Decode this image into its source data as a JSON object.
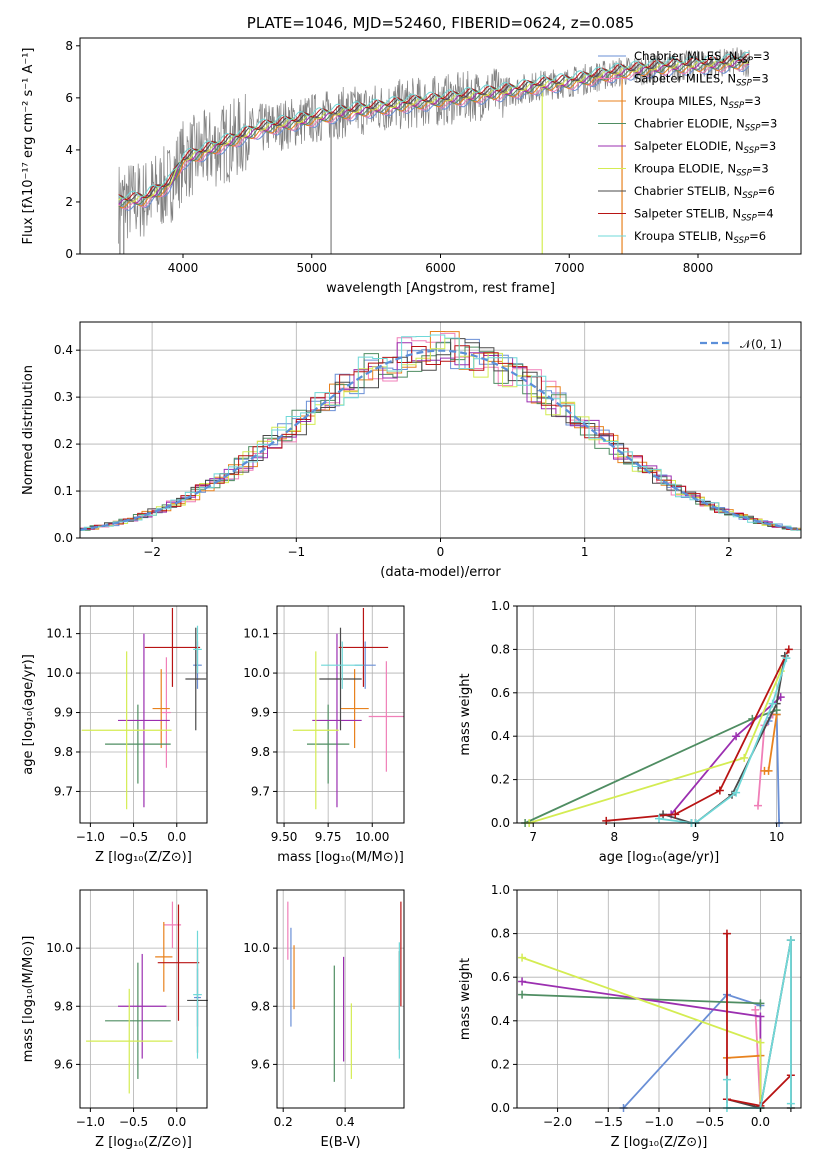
{
  "colors": {
    "Chabrier MILES": "#6a8fd6",
    "Salpeter MILES": "#f07fb8",
    "Kroupa MILES": "#e8821e",
    "Chabrier ELODIE": "#4f8d62",
    "Salpeter ELODIE": "#9b2fb0",
    "Kroupa ELODIE": "#d4ec52",
    "Chabrier STELIB": "#4a4a4a",
    "Salpeter STELIB": "#b81414",
    "Kroupa STELIB": "#6fd8d8",
    "observed": "#808080",
    "normal": "#5b8fd9"
  },
  "chart_data": [
    {
      "id": "spectrum",
      "type": "line",
      "title": "PLATE=1046, MJD=52460, FIBERID=0624, z=0.085",
      "xlabel": "wavelength [Angstrom, rest frame]",
      "ylabel": "Flux [fλ10⁻¹⁷ erg cm⁻² s⁻¹ A⁻¹]",
      "xlim": [
        3200,
        8800
      ],
      "ylim": [
        0,
        8.3
      ],
      "xticks": [
        "4000",
        "5000",
        "6000",
        "7000",
        "8000"
      ],
      "yticks": [
        "0",
        "2",
        "4",
        "6",
        "8"
      ],
      "grid": false,
      "legend_placement": "right",
      "legend": [
        {
          "label": "Chabrier MILES, N",
          "sub": "SSP",
          "val": "=3"
        },
        {
          "label": "Salpeter MILES, N",
          "sub": "SSP",
          "val": "=3"
        },
        {
          "label": "Kroupa MILES, N",
          "sub": "SSP",
          "val": "=3"
        },
        {
          "label": "Chabrier ELODIE, N",
          "sub": "SSP",
          "val": "=3"
        },
        {
          "label": "Salpeter ELODIE, N",
          "sub": "SSP",
          "val": "=3"
        },
        {
          "label": "Kroupa ELODIE, N",
          "sub": "SSP",
          "val": "=3"
        },
        {
          "label": "Chabrier STELIB, N",
          "sub": "SSP",
          "val": "=6"
        },
        {
          "label": "Salpeter STELIB, N",
          "sub": "SSP",
          "val": "=4"
        },
        {
          "label": "Kroupa STELIB, N",
          "sub": "SSP",
          "val": "=6"
        }
      ],
      "model_continuum": {
        "x": [
          3500,
          3700,
          3900,
          4000,
          4200,
          4400,
          4600,
          4800,
          5000,
          5200,
          5500,
          5800,
          6000,
          6300,
          6600,
          6800,
          7000,
          7200,
          7400,
          7800,
          8200,
          8400
        ],
        "y": [
          2.0,
          2.1,
          2.7,
          3.6,
          4.0,
          4.4,
          4.8,
          5.0,
          5.2,
          5.4,
          5.6,
          5.8,
          5.9,
          6.1,
          6.3,
          6.5,
          6.6,
          6.8,
          7.0,
          7.2,
          7.3,
          7.4
        ]
      },
      "observed_range": [
        3500,
        8400
      ]
    },
    {
      "id": "residuals",
      "type": "line",
      "xlabel": "(data-model)/error",
      "ylabel": "Normed distribution",
      "xlim": [
        -2.5,
        2.5
      ],
      "ylim": [
        0,
        0.46
      ],
      "xticks": [
        "−2",
        "−1",
        "0",
        "1",
        "2"
      ],
      "yticks": [
        "0.0",
        "0.1",
        "0.2",
        "0.3",
        "0.4"
      ],
      "grid": true,
      "legend_placement": "top-right",
      "legend": [
        {
          "label": "𝒩(0, 1)"
        }
      ],
      "series_reference": {
        "name": "𝒩(0, 1)",
        "mean": 0,
        "sigma": 1
      }
    },
    {
      "id": "age-Z",
      "type": "scatter",
      "xlabel": "Z [log₁₀(Z/Z⊙)]",
      "ylabel": "age  [log₁₀(age/yr)]",
      "xlim": [
        -1.12,
        0.35
      ],
      "ylim": [
        9.62,
        10.17
      ],
      "xticks": [
        "−1.0",
        "−0.5",
        "0.0"
      ],
      "xtickvals": [
        -1.0,
        -0.5,
        0.0
      ],
      "yticks": [
        "9.7",
        "9.8",
        "9.9",
        "10.0",
        "10.1"
      ],
      "ytickvals": [
        9.7,
        9.8,
        9.9,
        10.0,
        10.1
      ],
      "grid": true,
      "points": [
        {
          "s": "Chabrier MILES",
          "x": 0.24,
          "y": 10.02,
          "xe": 0.05,
          "ye": 0.06
        },
        {
          "s": "Salpeter MILES",
          "x": -0.12,
          "y": 9.9,
          "xe": 0.05,
          "ye": 0.14
        },
        {
          "s": "Kroupa MILES",
          "x": -0.18,
          "y": 9.91,
          "xe": 0.1,
          "ye": 0.1
        },
        {
          "s": "Chabrier ELODIE",
          "x": -0.45,
          "y": 9.82,
          "xe": 0.38,
          "ye": 0.1
        },
        {
          "s": "Salpeter ELODIE",
          "x": -0.38,
          "y": 9.88,
          "xe": 0.3,
          "ye": 0.22
        },
        {
          "s": "Kroupa ELODIE",
          "x": -0.58,
          "y": 9.855,
          "xe": 0.52,
          "ye": 0.2
        },
        {
          "s": "Chabrier STELIB",
          "x": 0.22,
          "y": 9.985,
          "xe": 0.12,
          "ye": 0.13
        },
        {
          "s": "Salpeter STELIB",
          "x": -0.05,
          "y": 10.065,
          "xe": 0.32,
          "ye": 0.1
        },
        {
          "s": "Kroupa STELIB",
          "x": 0.24,
          "y": 10.06,
          "xe": 0.05,
          "ye": 0.06
        }
      ]
    },
    {
      "id": "age-mass",
      "type": "scatter",
      "xlabel": "mass [log₁₀(M/M⊙)]",
      "ylabel": "",
      "xlim": [
        9.46,
        10.18
      ],
      "ylim": [
        9.62,
        10.17
      ],
      "xticks": [
        "9.50",
        "9.75",
        "10.00"
      ],
      "xtickvals": [
        9.5,
        9.75,
        10.0
      ],
      "yticks": [
        "9.7",
        "9.8",
        "9.9",
        "10.0",
        "10.1"
      ],
      "ytickvals": [
        9.7,
        9.8,
        9.9,
        10.0,
        10.1
      ],
      "grid": true,
      "points": [
        {
          "s": "Chabrier MILES",
          "x": 9.96,
          "y": 10.02,
          "xe": 0.06,
          "ye": 0.06
        },
        {
          "s": "Salpeter MILES",
          "x": 10.08,
          "y": 9.89,
          "xe": 0.1,
          "ye": 0.14
        },
        {
          "s": "Kroupa MILES",
          "x": 9.9,
          "y": 9.91,
          "xe": 0.08,
          "ye": 0.1
        },
        {
          "s": "Chabrier ELODIE",
          "x": 9.75,
          "y": 9.82,
          "xe": 0.12,
          "ye": 0.1
        },
        {
          "s": "Salpeter ELODIE",
          "x": 9.8,
          "y": 9.88,
          "xe": 0.14,
          "ye": 0.22
        },
        {
          "s": "Kroupa ELODIE",
          "x": 9.68,
          "y": 9.855,
          "xe": 0.13,
          "ye": 0.2
        },
        {
          "s": "Chabrier STELIB",
          "x": 9.82,
          "y": 9.985,
          "xe": 0.12,
          "ye": 0.13
        },
        {
          "s": "Salpeter STELIB",
          "x": 9.95,
          "y": 10.065,
          "xe": 0.14,
          "ye": 0.1
        },
        {
          "s": "Kroupa STELIB",
          "x": 9.83,
          "y": 10.02,
          "xe": 0.12,
          "ye": 0.06
        }
      ]
    },
    {
      "id": "mw-age",
      "type": "line",
      "xlabel": "age  [log₁₀(age/yr)]",
      "ylabel": "mass weight",
      "xlim": [
        6.8,
        10.3
      ],
      "ylim": [
        0,
        1.0
      ],
      "xticks": [
        "7",
        "8",
        "9",
        "10"
      ],
      "xtickvals": [
        7,
        8,
        9,
        10
      ],
      "yticks": [
        "0.0",
        "0.2",
        "0.4",
        "0.6",
        "0.8",
        "1.0"
      ],
      "ytickvals": [
        0,
        0.2,
        0.4,
        0.6,
        0.8,
        1.0
      ],
      "grid": true,
      "series": [
        {
          "name": "Chabrier MILES",
          "x": [
            9.9,
            9.95,
            10.0,
            10.03
          ],
          "y": [
            0.47,
            0.5,
            0.5,
            0.0
          ]
        },
        {
          "name": "Salpeter MILES",
          "x": [
            9.77,
            9.85,
            9.95
          ],
          "y": [
            0.08,
            0.45,
            0.5
          ]
        },
        {
          "name": "Kroupa MILES",
          "x": [
            9.85,
            9.9,
            10.0
          ],
          "y": [
            0.24,
            0.24,
            0.5
          ]
        },
        {
          "name": "Chabrier ELODIE",
          "x": [
            6.9,
            9.7,
            10.0
          ],
          "y": [
            0.0,
            0.48,
            0.52
          ]
        },
        {
          "name": "Salpeter ELODIE",
          "x": [
            8.7,
            9.5,
            10.05
          ],
          "y": [
            0.04,
            0.4,
            0.58
          ]
        },
        {
          "name": "Kroupa ELODIE",
          "x": [
            6.95,
            9.6,
            10.05
          ],
          "y": [
            0.0,
            0.3,
            0.7
          ]
        },
        {
          "name": "Chabrier STELIB",
          "x": [
            8.6,
            8.95,
            9.0,
            9.45,
            10.0,
            10.1
          ],
          "y": [
            0.04,
            0.0,
            0.0,
            0.13,
            0.55,
            0.77
          ]
        },
        {
          "name": "Salpeter STELIB",
          "x": [
            7.9,
            8.75,
            9.3,
            10.15
          ],
          "y": [
            0.01,
            0.04,
            0.15,
            0.8
          ]
        },
        {
          "name": "Kroupa STELIB",
          "x": [
            8.55,
            8.95,
            9.0,
            9.5,
            9.95,
            10.12
          ],
          "y": [
            0.02,
            0.0,
            0.0,
            0.14,
            0.55,
            0.76
          ]
        }
      ]
    },
    {
      "id": "mass-Z",
      "type": "scatter",
      "xlabel": "Z [log₁₀(Z/Z⊙)]",
      "ylabel": "mass [log₁₀(M/M⊙)]",
      "xlim": [
        -1.12,
        0.35
      ],
      "ylim": [
        9.45,
        10.2
      ],
      "xticks": [
        "−1.0",
        "−0.5",
        "0.0"
      ],
      "xtickvals": [
        -1.0,
        -0.5,
        0.0
      ],
      "yticks": [
        "9.6",
        "9.8",
        "10.0"
      ],
      "ytickvals": [
        9.6,
        9.8,
        10.0
      ],
      "grid": true,
      "points": [
        {
          "s": "Chabrier MILES",
          "x": 0.24,
          "y": 9.83,
          "xe": 0.04,
          "ye": 0.1
        },
        {
          "s": "Salpeter MILES",
          "x": -0.05,
          "y": 10.08,
          "xe": 0.1,
          "ye": 0.08
        },
        {
          "s": "Kroupa MILES",
          "x": -0.15,
          "y": 9.97,
          "xe": 0.1,
          "ye": 0.12
        },
        {
          "s": "Chabrier ELODIE",
          "x": -0.45,
          "y": 9.75,
          "xe": 0.38,
          "ye": 0.2
        },
        {
          "s": "Salpeter ELODIE",
          "x": -0.4,
          "y": 9.8,
          "xe": 0.28,
          "ye": 0.18
        },
        {
          "s": "Kroupa ELODIE",
          "x": -0.55,
          "y": 9.68,
          "xe": 0.5,
          "ye": 0.18
        },
        {
          "s": "Chabrier STELIB",
          "x": 0.24,
          "y": 9.82,
          "xe": 0.12,
          "ye": 0.18
        },
        {
          "s": "Salpeter STELIB",
          "x": 0.02,
          "y": 9.95,
          "xe": 0.24,
          "ye": 0.2
        },
        {
          "s": "Kroupa STELIB",
          "x": 0.24,
          "y": 9.84,
          "xe": 0.05,
          "ye": 0.22
        }
      ]
    },
    {
      "id": "mass-ebv",
      "type": "scatter",
      "xlabel": "E(B-V)",
      "ylabel": "",
      "xlim": [
        0.18,
        0.59
      ],
      "ylim": [
        9.45,
        10.2
      ],
      "xticks": [
        "0.2",
        "0.4"
      ],
      "xtickvals": [
        0.2,
        0.4
      ],
      "yticks": [
        "9.6",
        "9.8",
        "10.0"
      ],
      "ytickvals": [
        9.6,
        9.8,
        10.0
      ],
      "grid": true,
      "points": [
        {
          "s": "Chabrier MILES",
          "x": 0.225,
          "y": 9.9,
          "xe": 0.0,
          "ye": 0.17
        },
        {
          "s": "Salpeter MILES",
          "x": 0.215,
          "y": 10.06,
          "xe": 0.0,
          "ye": 0.1
        },
        {
          "s": "Kroupa MILES",
          "x": 0.235,
          "y": 9.9,
          "xe": 0.0,
          "ye": 0.11
        },
        {
          "s": "Chabrier ELODIE",
          "x": 0.365,
          "y": 9.74,
          "xe": 0.0,
          "ye": 0.2
        },
        {
          "s": "Salpeter ELODIE",
          "x": 0.395,
          "y": 9.79,
          "xe": 0.0,
          "ye": 0.18
        },
        {
          "s": "Kroupa ELODIE",
          "x": 0.42,
          "y": 9.68,
          "xe": 0.0,
          "ye": 0.13
        },
        {
          "s": "Chabrier STELIB",
          "x": 0.575,
          "y": 9.82,
          "xe": 0.0,
          "ye": 0.17
        },
        {
          "s": "Salpeter STELIB",
          "x": 0.58,
          "y": 9.98,
          "xe": 0.0,
          "ye": 0.18
        },
        {
          "s": "Kroupa STELIB",
          "x": 0.575,
          "y": 9.82,
          "xe": 0.0,
          "ye": 0.2
        }
      ]
    },
    {
      "id": "mw-Z",
      "type": "line",
      "xlabel": "Z [log₁₀(Z/Z⊙)]",
      "ylabel": "mass weight",
      "xlim": [
        -2.4,
        0.4
      ],
      "ylim": [
        0,
        1.0
      ],
      "xticks": [
        "−2.0",
        "−1.5",
        "−1.0",
        "−0.5",
        "0.0"
      ],
      "xtickvals": [
        -2.0,
        -1.5,
        -1.0,
        -0.5,
        0.0
      ],
      "yticks": [
        "0.0",
        "0.2",
        "0.4",
        "0.6",
        "0.8",
        "1.0"
      ],
      "ytickvals": [
        0,
        0.2,
        0.4,
        0.6,
        0.8,
        1.0
      ],
      "grid": true,
      "series": [
        {
          "name": "Chabrier MILES",
          "x": [
            -1.35,
            -0.33,
            0.0
          ],
          "y": [
            0.0,
            0.52,
            0.47
          ]
        },
        {
          "name": "Salpeter MILES",
          "x": [
            -0.05,
            0.0
          ],
          "y": [
            0.45,
            0.0
          ]
        },
        {
          "name": "Kroupa MILES",
          "x": [
            -0.33,
            0.0,
            0.0
          ],
          "y": [
            0.23,
            0.24,
            0.0
          ]
        },
        {
          "name": "Chabrier ELODIE",
          "x": [
            -2.35,
            0.0
          ],
          "y": [
            0.52,
            0.48
          ]
        },
        {
          "name": "Salpeter ELODIE",
          "x": [
            -2.35,
            0.0,
            0.0
          ],
          "y": [
            0.58,
            0.42,
            0.0
          ]
        },
        {
          "name": "Kroupa ELODIE",
          "x": [
            -2.35,
            0.0,
            0.0
          ],
          "y": [
            0.69,
            0.3,
            0.0
          ]
        },
        {
          "name": "Chabrier STELIB",
          "x": [
            -0.33,
            0.0,
            0.3,
            0.3
          ],
          "y": [
            0.04,
            0.0,
            0.77,
            0.0
          ]
        },
        {
          "name": "Salpeter STELIB",
          "x": [
            -0.33,
            -0.33,
            0.0,
            0.3
          ],
          "y": [
            0.8,
            0.04,
            0.01,
            0.15
          ]
        },
        {
          "name": "Kroupa STELIB",
          "x": [
            -0.33,
            -0.33,
            0.0,
            0.3,
            0.3
          ],
          "y": [
            0.13,
            0.0,
            0.0,
            0.77,
            0.02
          ]
        }
      ]
    }
  ]
}
